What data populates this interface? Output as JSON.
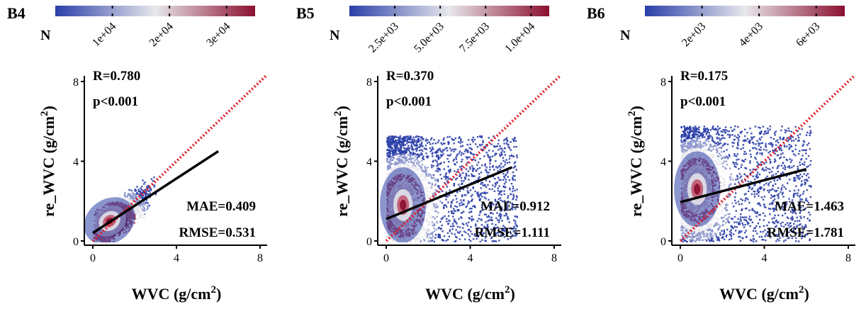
{
  "colors": {
    "low": "#2b3fa8",
    "mid": "#e8e8ec",
    "high": "#8b1030",
    "fit_line": "#000000",
    "identity_line": "#e0202a",
    "axis": "#000000"
  },
  "chart_data": [
    {
      "type": "scatter",
      "panel_label": "B4",
      "density_label": "N",
      "colorbar": {
        "ticks": [
          "1e+04",
          "2e+04",
          "3e+04"
        ],
        "tick_values": [
          10000,
          20000,
          30000
        ],
        "range": [
          0,
          35000
        ]
      },
      "xlabel": "WVC (g/cm",
      "xlabel_sup": "2",
      "xlabel_end": ")",
      "ylabel": "re_WVC (g/cm",
      "ylabel_sup": "2",
      "ylabel_end": ")",
      "xlim": [
        0,
        8
      ],
      "ylim": [
        0,
        8
      ],
      "xticks": [
        "0",
        "4",
        "8"
      ],
      "yticks": [
        "0",
        "4",
        "8"
      ],
      "stats": {
        "r": "R=0.780",
        "p": "p<0.001",
        "mae": "MAE=0.409",
        "rmse": "RMSE=0.531"
      },
      "fit_line": {
        "x": [
          0,
          6
        ],
        "y": [
          0.4,
          4.5
        ]
      },
      "identity_line": {
        "x": [
          0,
          8
        ],
        "y": [
          0,
          8
        ]
      },
      "cloud": {
        "x_range": [
          0,
          6.2
        ],
        "y_max": 5.0,
        "core_x": 0.8,
        "core_y": 1.0,
        "shape": "correlated"
      }
    },
    {
      "type": "scatter",
      "panel_label": "B5",
      "density_label": "N",
      "colorbar": {
        "ticks": [
          "2.5e+03",
          "5.0e+03",
          "7.5e+03",
          "1.0e+04"
        ],
        "tick_values": [
          2500,
          5000,
          7500,
          10000
        ],
        "range": [
          0,
          11000
        ]
      },
      "xlabel": "WVC (g/cm",
      "xlabel_sup": "2",
      "xlabel_end": ")",
      "ylabel": "re_WVC (g/cm",
      "ylabel_sup": "2",
      "ylabel_end": ")",
      "xlim": [
        0,
        8
      ],
      "ylim": [
        0,
        8
      ],
      "xticks": [
        "0",
        "4",
        "8"
      ],
      "yticks": [
        "0",
        "4",
        "8"
      ],
      "stats": {
        "r": "R=0.370",
        "p": "p<0.001",
        "mae": "MAE=0.912",
        "rmse": "RMSE=1.111"
      },
      "fit_line": {
        "x": [
          0,
          6
        ],
        "y": [
          1.1,
          3.7
        ]
      },
      "identity_line": {
        "x": [
          0,
          8
        ],
        "y": [
          0,
          8
        ]
      },
      "cloud": {
        "x_range": [
          0,
          6.2
        ],
        "y_max": 5.3,
        "core_x": 0.8,
        "core_y": 1.8,
        "shape": "block"
      }
    },
    {
      "type": "scatter",
      "panel_label": "B6",
      "density_label": "N",
      "colorbar": {
        "ticks": [
          "2e+03",
          "4e+03",
          "6e+03"
        ],
        "tick_values": [
          2000,
          4000,
          6000
        ],
        "range": [
          0,
          7000
        ]
      },
      "xlabel": "WVC (g/cm",
      "xlabel_sup": "2",
      "xlabel_end": ")",
      "ylabel": "re_WVC (g/cm",
      "ylabel_sup": "2",
      "ylabel_end": ")",
      "xlim": [
        0,
        8
      ],
      "ylim": [
        0,
        8
      ],
      "xticks": [
        "0",
        "4",
        "8"
      ],
      "yticks": [
        "0",
        "4",
        "8"
      ],
      "stats": {
        "r": "R=0.175",
        "p": "p<0.001",
        "mae": "MAE=1.463",
        "rmse": "RMSE=1.781"
      },
      "fit_line": {
        "x": [
          0,
          6
        ],
        "y": [
          1.95,
          3.6
        ]
      },
      "identity_line": {
        "x": [
          0,
          8
        ],
        "y": [
          0,
          8
        ]
      },
      "cloud": {
        "x_range": [
          0,
          6.2
        ],
        "y_max": 5.8,
        "core_x": 0.8,
        "core_y": 2.6,
        "shape": "block"
      }
    }
  ]
}
